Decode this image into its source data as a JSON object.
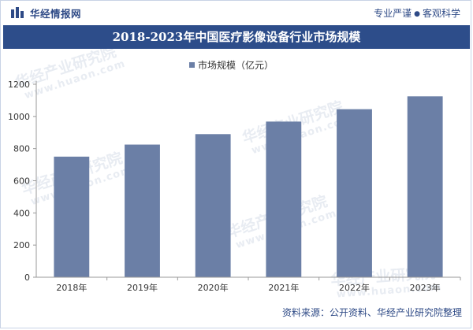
{
  "header": {
    "brand_name": "华经情报网",
    "slogan_left": "专业严谨",
    "slogan_dot": "●",
    "slogan_right": "客观科学"
  },
  "watermark": {
    "text": "华经产业研究院",
    "url": "www.huaon.com"
  },
  "footer": {
    "source": "资料来源：公开资料、华经产业研究院整理"
  },
  "colors": {
    "bar": "#6b7fa6",
    "title_band": "#2d4d8a",
    "brand": "#2e4a86"
  },
  "chart_data": {
    "type": "bar",
    "title": "2018-2023年中国医疗影像设备行业市场规模",
    "categories": [
      "2018年",
      "2019年",
      "2020年",
      "2021年",
      "2022年",
      "2023年"
    ],
    "series": [
      {
        "name": "市场规模（亿元）",
        "values": [
          750,
          825,
          890,
          968,
          1045,
          1125
        ]
      }
    ],
    "xlabel": "",
    "ylabel": "",
    "ylim": [
      0,
      1200
    ],
    "yticks": [
      0,
      200,
      400,
      600,
      800,
      1000,
      1200
    ],
    "legend": "top-center",
    "grid": false
  }
}
